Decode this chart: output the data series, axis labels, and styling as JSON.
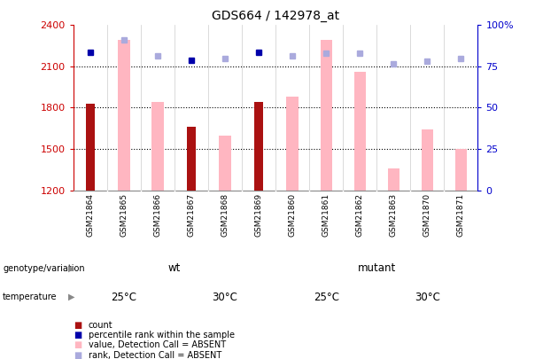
{
  "title": "GDS664 / 142978_at",
  "samples": [
    "GSM21864",
    "GSM21865",
    "GSM21866",
    "GSM21867",
    "GSM21868",
    "GSM21869",
    "GSM21860",
    "GSM21861",
    "GSM21862",
    "GSM21863",
    "GSM21870",
    "GSM21871"
  ],
  "count_values": [
    1830,
    null,
    null,
    1660,
    null,
    1840,
    null,
    null,
    null,
    null,
    null,
    null
  ],
  "pink_values": [
    null,
    2290,
    1840,
    null,
    1600,
    null,
    1880,
    2295,
    2060,
    1360,
    1640,
    1500
  ],
  "blue_sq_y": [
    2200,
    2290,
    2175,
    2145,
    2155,
    2200,
    2175,
    2195,
    2195,
    null,
    2140,
    2155
  ],
  "blue_sq_dark": [
    true,
    false,
    false,
    true,
    false,
    true,
    false,
    false,
    false,
    false,
    false,
    false
  ],
  "light_blue_sq_y": [
    null,
    null,
    null,
    null,
    null,
    null,
    null,
    null,
    null,
    2120,
    null,
    null
  ],
  "ylim": [
    1200,
    2400
  ],
  "yticks_left": [
    1200,
    1500,
    1800,
    2100,
    2400
  ],
  "yticks_right_labels": [
    "0",
    "25",
    "50",
    "75",
    "100%"
  ],
  "yticks_right_pct": [
    0,
    25,
    50,
    75,
    100
  ],
  "hgrid_vals": [
    1500,
    1800,
    2100
  ],
  "genotype_groups": [
    {
      "label": "wt",
      "start": 0,
      "end": 6,
      "color": "#90EE90"
    },
    {
      "label": "mutant",
      "start": 6,
      "end": 12,
      "color": "#44CC44"
    }
  ],
  "temp_groups": [
    {
      "label": "25°C",
      "start": 0,
      "end": 3,
      "color": "#FF77FF"
    },
    {
      "label": "30°C",
      "start": 3,
      "end": 6,
      "color": "#CC22CC"
    },
    {
      "label": "25°C",
      "start": 6,
      "end": 9,
      "color": "#FF77FF"
    },
    {
      "label": "30°C",
      "start": 9,
      "end": 12,
      "color": "#CC22CC"
    }
  ],
  "count_color": "#AA1111",
  "pink_bar_color": "#FFB6C1",
  "dark_blue_color": "#0000AA",
  "light_blue_color": "#AAAADD",
  "left_tick_color": "#CC0000",
  "right_tick_color": "#0000CC",
  "count_bar_width": 0.25,
  "pink_bar_width": 0.35
}
